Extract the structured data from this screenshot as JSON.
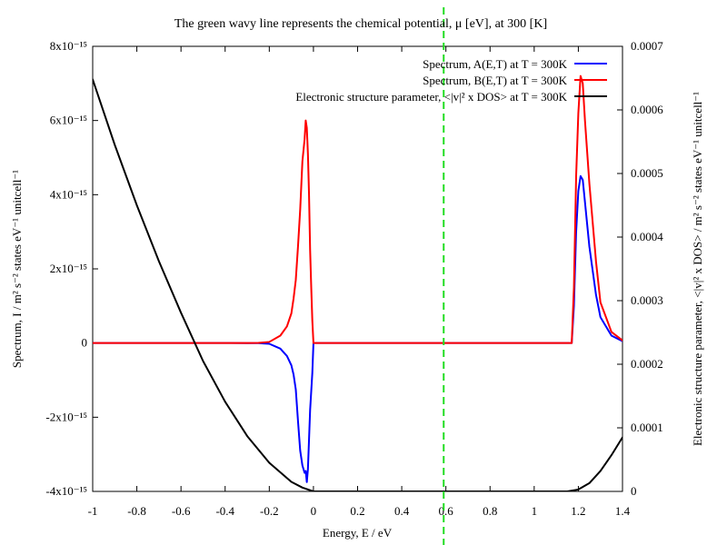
{
  "chart_data": {
    "type": "line",
    "title": "The green wavy line represents the chemical potential, μ [eV], at 300 [K]",
    "xlabel": "Energy, E / eV",
    "ylabel": "Spectrum, I / m² s⁻² states eV⁻¹ unitcell⁻¹",
    "y2label": "Electronic structure parameter, <|v|² x DOS> / m² s⁻² states eV⁻¹ unitcell⁻¹",
    "xlim": [
      -1,
      1.4
    ],
    "ylim": [
      -4e-15,
      8e-15
    ],
    "y2lim": [
      0,
      0.0007
    ],
    "x_ticks": [
      "-1",
      "-0.8",
      "-0.6",
      "-0.4",
      "-0.2",
      "0",
      "0.2",
      "0.4",
      "0.6",
      "0.8",
      "1",
      "1.2",
      "1.4"
    ],
    "y_ticks": [
      "-4x10⁻¹⁵",
      "-2x10⁻¹⁵",
      "0",
      "2x10⁻¹⁵",
      "4x10⁻¹⁵",
      "6x10⁻¹⁵",
      "8x10⁻¹⁵"
    ],
    "y2_ticks": [
      "0",
      "0.0001",
      "0.0002",
      "0.0003",
      "0.0004",
      "0.0005",
      "0.0006",
      "0.0007"
    ],
    "grid": false,
    "legend_position": "top-right",
    "chemical_potential": 0.59,
    "series": [
      {
        "name": "Spectrum, A(E,T) at T = 300K",
        "color": "#0000ff",
        "axis": "left",
        "x": [
          -1.0,
          -0.4,
          -0.3,
          -0.25,
          -0.2,
          -0.15,
          -0.12,
          -0.1,
          -0.09,
          -0.08,
          -0.07,
          -0.06,
          -0.05,
          -0.04,
          -0.035,
          -0.03,
          -0.025,
          -0.02,
          -0.015,
          -0.01,
          -0.005,
          0.0,
          1.0,
          1.17,
          1.18,
          1.19,
          1.2,
          1.21,
          1.22,
          1.23,
          1.25,
          1.28,
          1.3,
          1.35,
          1.4
        ],
        "y": [
          0,
          0,
          -5e-19,
          -2e-18,
          -2e-17,
          -1.5e-16,
          -3.5e-16,
          -6e-16,
          -8.5e-16,
          -1.25e-15,
          -2.1e-15,
          -2.9e-15,
          -3.3e-15,
          -3.5e-15,
          -3.45e-15,
          -3.75e-15,
          -3.4e-15,
          -2.6e-15,
          -1.8e-15,
          -1.3e-15,
          -8e-16,
          0,
          0,
          0,
          1e-15,
          3e-15,
          4.1e-15,
          4.5e-15,
          4.4e-15,
          3.8e-15,
          2.6e-15,
          1.3e-15,
          7e-16,
          2e-16,
          5e-17
        ]
      },
      {
        "name": "Spectrum, B(E,T) at T = 300K",
        "color": "#ff0000",
        "axis": "left",
        "x": [
          -1.0,
          -0.4,
          -0.3,
          -0.25,
          -0.2,
          -0.15,
          -0.12,
          -0.1,
          -0.09,
          -0.08,
          -0.07,
          -0.06,
          -0.05,
          -0.04,
          -0.035,
          -0.03,
          -0.025,
          -0.02,
          -0.015,
          -0.01,
          -0.005,
          0.0,
          1.0,
          1.17,
          1.18,
          1.19,
          1.2,
          1.21,
          1.22,
          1.23,
          1.25,
          1.28,
          1.3,
          1.35,
          1.4
        ],
        "y": [
          0,
          0,
          5e-19,
          3e-18,
          3e-17,
          2e-16,
          4.5e-16,
          8e-16,
          1.2e-15,
          1.7e-15,
          2.6e-15,
          3.6e-15,
          4.9e-15,
          5.5e-15,
          6e-15,
          5.8e-15,
          5.1e-15,
          4e-15,
          2.5e-15,
          1.5e-15,
          6e-16,
          0,
          0,
          0,
          1.5e-15,
          4.5e-15,
          6.2e-15,
          7.2e-15,
          7e-15,
          6e-15,
          4.3e-15,
          2.2e-15,
          1.1e-15,
          3e-16,
          7e-17
        ]
      },
      {
        "name": "Electronic structure parameter, <|v|² x DOS> at T = 300K",
        "color": "#000000",
        "axis": "right",
        "x": [
          -1.0,
          -0.9,
          -0.8,
          -0.7,
          -0.6,
          -0.5,
          -0.4,
          -0.3,
          -0.2,
          -0.1,
          -0.05,
          0.0,
          0.5,
          1.15,
          1.2,
          1.25,
          1.3,
          1.35,
          1.4
        ],
        "y": [
          0.000648,
          0.000545,
          0.00045,
          0.000362,
          0.000281,
          0.000205,
          0.000141,
          8.7e-05,
          4.5e-05,
          1.5e-05,
          6e-06,
          0,
          0,
          0,
          3e-06,
          1.3e-05,
          3.2e-05,
          5.7e-05,
          8.5e-05
        ]
      }
    ]
  }
}
